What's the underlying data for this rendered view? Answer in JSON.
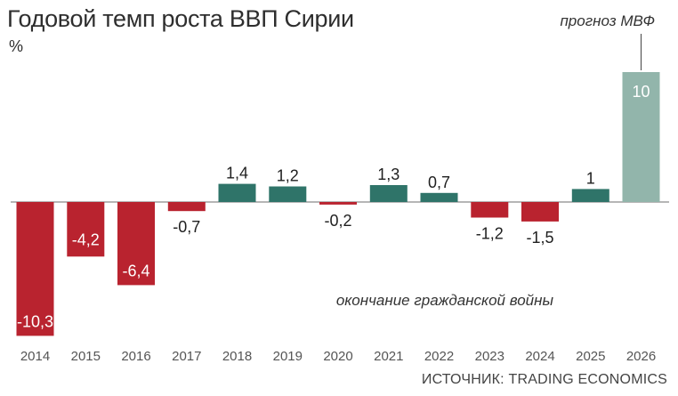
{
  "title": "Годовой темп роста ВВП Сирии",
  "unit": "%",
  "source": "ИСТОЧНИК: TRADING ECONOMICS",
  "colors": {
    "negative": "#b9232f",
    "positive": "#2f7469",
    "forecast": "#92b5ab"
  },
  "chart_data": {
    "type": "bar",
    "categories": [
      "2014",
      "2015",
      "2016",
      "2017",
      "2018",
      "2019",
      "2020",
      "2021",
      "2022",
      "2023",
      "2024",
      "2025",
      "2026"
    ],
    "values": [
      -10.3,
      -4.2,
      -6.4,
      -0.7,
      1.4,
      1.2,
      -0.2,
      1.3,
      0.7,
      -1.2,
      -1.5,
      1,
      10
    ],
    "value_labels": [
      "-10,3",
      "-4,2",
      "-6,4",
      "-0,7",
      "1,4",
      "1,2",
      "-0,2",
      "1,3",
      "0,7",
      "-1,2",
      "-1,5",
      "1",
      "10"
    ],
    "forecast_index": 12,
    "ylabel": "%",
    "annotations": [
      {
        "text": "прогноз МВФ",
        "category": "2026"
      },
      {
        "text": "окончание гражданской войны",
        "category": "2024"
      }
    ]
  }
}
